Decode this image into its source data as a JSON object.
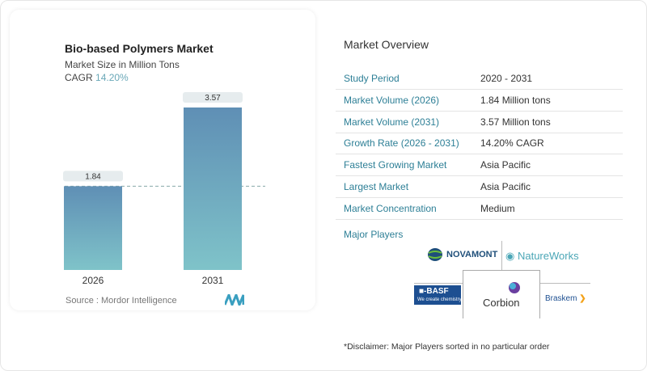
{
  "chart_data": {
    "type": "bar",
    "title": "Bio-based Polymers Market",
    "subtitle": "Market Size in Million Tons",
    "cagr_label": "CAGR",
    "cagr_value": "14.20%",
    "categories": [
      "2026",
      "2031"
    ],
    "values": [
      1.84,
      3.57
    ],
    "data_labels": [
      "1.84",
      "3.57"
    ],
    "ylim": [
      0,
      3.57
    ],
    "reference_line": 1.84,
    "grid": false,
    "bar_colors": [
      "#5f8fb5",
      "#7fc3c9"
    ]
  },
  "source": "Source :  Mordor Intelligence",
  "overview": {
    "title": "Market Overview",
    "rows": [
      {
        "label": "Study Period",
        "value": "2020 - 2031"
      },
      {
        "label": "Market Volume (2026)",
        "value": "1.84 Million tons"
      },
      {
        "label": "Market Volume (2031)",
        "value": "3.57 Million tons"
      },
      {
        "label": "Growth Rate (2026 - 2031)",
        "value": "14.20% CAGR"
      },
      {
        "label": "Fastest Growing Market",
        "value": "Asia Pacific"
      },
      {
        "label": "Largest Market",
        "value": "Asia Pacific"
      },
      {
        "label": "Market Concentration",
        "value": "Medium"
      }
    ]
  },
  "players": {
    "title": "Major Players",
    "logos": [
      "NOVAMONT",
      "NatureWorks",
      "BASF",
      "We create chemistry",
      "Corbion",
      "Braskem"
    ]
  },
  "disclaimer": "*Disclaimer: Major Players sorted in no particular order",
  "colors": {
    "accent": "#2d7f96",
    "cagr": "#6aa8b8"
  }
}
